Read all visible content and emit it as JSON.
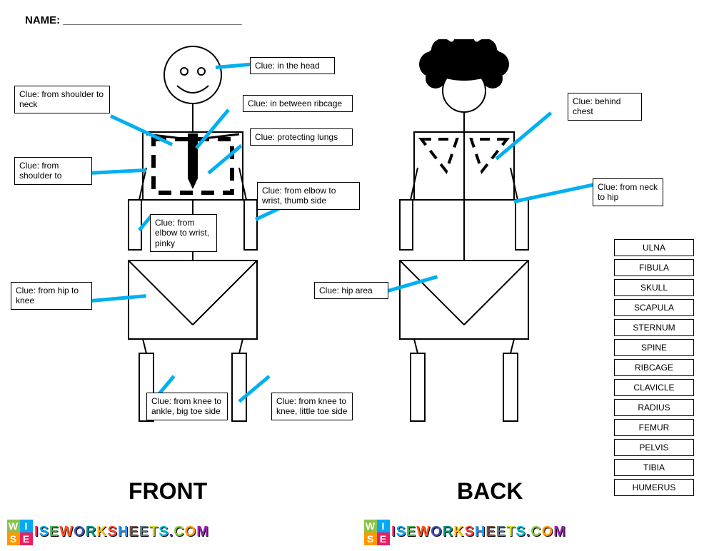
{
  "name_label": "NAME: ______________________________",
  "figure_labels": {
    "front": "FRONT",
    "back": "BACK"
  },
  "clues": {
    "head": "Clue: in the head",
    "shoulder_neck": "Clue: from shoulder to neck",
    "ribcage": "Clue: in between ribcage",
    "lungs": "Clue: protecting lungs",
    "shoulder_to": "Clue: from shoulder to",
    "elbow_thumb": "Clue: from elbow to wrist, thumb side",
    "elbow_pinky": "Clue: from elbow to wrist, pinky",
    "hip_knee": "Clue: from hip to knee",
    "knee_bigtoe": "Clue: from knee to ankle, big toe side",
    "knee_little": "Clue: from knee to knee, little toe side",
    "hip_area": "Clue: hip area",
    "behind_chest": "Clue: behind chest",
    "neck_hip": "Clue: from neck to hip"
  },
  "wordbank": [
    "ULNA",
    "FIBULA",
    "SKULL",
    "SCAPULA",
    "STERNUM",
    "SPINE",
    "RIBCAGE",
    "CLAVICLE",
    "RADIUS",
    "FEMUR",
    "PELVIS",
    "TIBIA",
    "HUMERUS"
  ],
  "watermark_text": "ISEWORKSHEETS.COM",
  "colors": {
    "pointer": "#00b0f0",
    "wm": [
      "#8bc34a",
      "#ff9800",
      "#9c27b0",
      "#e91e63",
      "#03a9f4",
      "#4caf50",
      "#ff5722",
      "#3f51b5",
      "#009688",
      "#ffc107",
      "#f44336",
      "#2196f3",
      "#795548",
      "#607d8b",
      "#cddc39",
      "#00bcd4",
      "#673ab7"
    ]
  }
}
